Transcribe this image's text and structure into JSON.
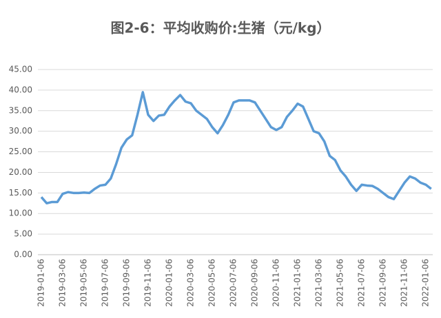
{
  "chart_data": {
    "type": "line",
    "title": "图2-6：平均收购价:生猪（元/kg）",
    "categories": [
      "2019-01-06",
      null,
      null,
      null,
      "2019-03-06",
      null,
      null,
      null,
      "2019-05-06",
      null,
      null,
      null,
      "2019-07-06",
      null,
      null,
      null,
      "2019-09-06",
      null,
      null,
      null,
      "2019-11-06",
      null,
      null,
      null,
      "2020-01-06",
      null,
      null,
      null,
      "2020-03-06",
      null,
      null,
      null,
      "2020-05-06",
      null,
      null,
      null,
      "2020-07-06",
      null,
      null,
      null,
      "2020-09-06",
      null,
      null,
      null,
      "2020-11-06",
      null,
      null,
      null,
      "2021-01-06",
      null,
      null,
      null,
      "2021-03-06",
      null,
      null,
      null,
      "2021-05-06",
      null,
      null,
      null,
      "2021-07-06",
      null,
      null,
      null,
      "2021-09-06",
      null,
      null,
      null,
      "2021-11-06",
      null,
      null,
      null,
      "2022-01-06",
      null
    ],
    "values": [
      14.0,
      12.5,
      12.8,
      12.8,
      14.8,
      15.2,
      15.0,
      15.0,
      15.1,
      15.0,
      16.0,
      16.8,
      17.0,
      18.5,
      22.0,
      26.0,
      28.0,
      29.0,
      34.0,
      39.5,
      34.0,
      32.5,
      33.8,
      34.0,
      36.0,
      37.5,
      38.8,
      37.2,
      36.8,
      35.0,
      34.0,
      33.0,
      31.0,
      29.5,
      31.5,
      34.0,
      37.0,
      37.5,
      37.5,
      37.5,
      37.0,
      35.0,
      33.0,
      31.0,
      30.3,
      31.0,
      33.5,
      35.0,
      36.7,
      36.0,
      33.0,
      30.0,
      29.5,
      27.5,
      24.0,
      23.0,
      20.5,
      19.0,
      17.0,
      15.5,
      17.0,
      16.8,
      16.7,
      16.0,
      15.0,
      14.0,
      13.5,
      15.5,
      17.5,
      19.0,
      18.5,
      17.5,
      17.0,
      16.0
    ],
    "color": "#5b9bd5",
    "ylim": [
      0,
      45
    ],
    "yticks": [
      {
        "value": 0,
        "label": "0.00"
      },
      {
        "value": 5,
        "label": "5.00"
      },
      {
        "value": 10,
        "label": "10.00"
      },
      {
        "value": 15,
        "label": "15.00"
      },
      {
        "value": 20,
        "label": "20.00"
      },
      {
        "value": 25,
        "label": "25.00"
      },
      {
        "value": 30,
        "label": "30.00"
      },
      {
        "value": 35,
        "label": "35.00"
      },
      {
        "value": 40,
        "label": "40.00"
      },
      {
        "value": 45,
        "label": "45.00"
      }
    ],
    "grid": true
  }
}
